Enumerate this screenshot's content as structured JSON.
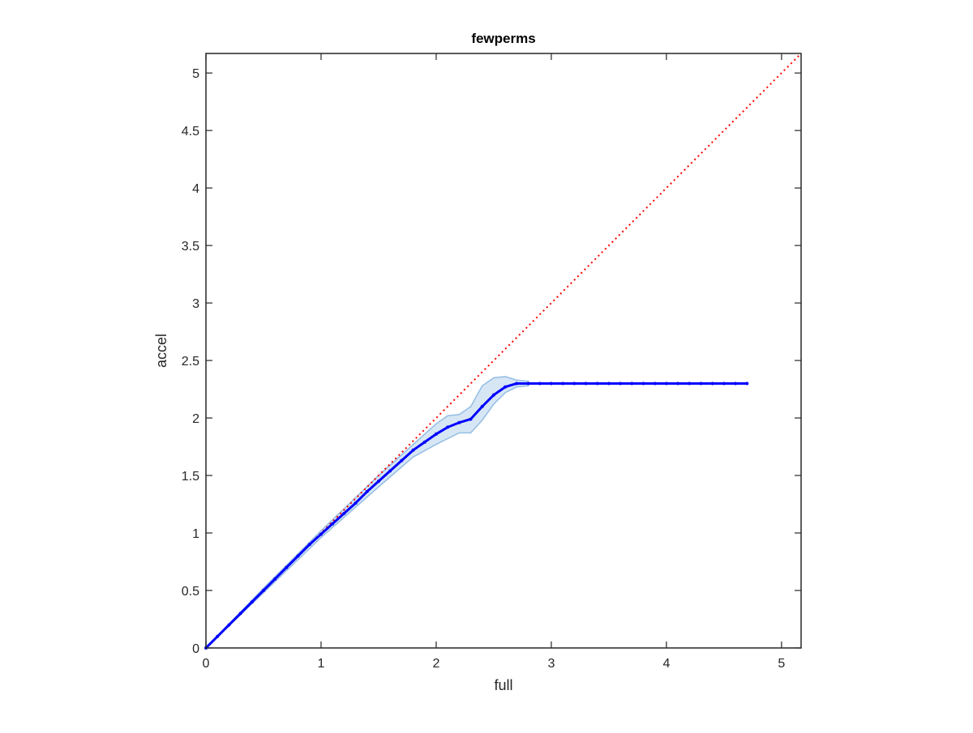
{
  "chart_data": {
    "type": "line",
    "title": "fewperms",
    "x_label": "full",
    "y_label": "accel",
    "xlim": [
      0,
      5.17
    ],
    "ylim": [
      0,
      5.17
    ],
    "xticks": [
      0,
      1,
      2,
      3,
      4,
      5
    ],
    "yticks": [
      0,
      0.5,
      1,
      1.5,
      2,
      2.5,
      3,
      3.5,
      4,
      4.5,
      5
    ],
    "grid": false,
    "box": true,
    "reference": {
      "x": [
        0,
        5.17
      ],
      "values": [
        0,
        5.17
      ],
      "color": "#ff0000",
      "style": "dotted"
    },
    "band": {
      "color": "#5b9bd5",
      "x": [
        0,
        0.5,
        1,
        1.5,
        1.8,
        2.0,
        2.1,
        2.2,
        2.3,
        2.4,
        2.5,
        2.6,
        2.7,
        2.8
      ],
      "upper": [
        0,
        0.52,
        1.02,
        1.5,
        1.77,
        1.95,
        2.02,
        2.03,
        2.1,
        2.28,
        2.35,
        2.36,
        2.33,
        2.32
      ],
      "lower": [
        0,
        0.48,
        0.96,
        1.4,
        1.66,
        1.77,
        1.82,
        1.87,
        1.87,
        1.98,
        2.12,
        2.22,
        2.27,
        2.28
      ]
    },
    "series": [
      {
        "color": "#0000ff",
        "x": [
          0,
          0.1,
          0.2,
          0.3,
          0.4,
          0.5,
          0.6,
          0.7,
          0.8,
          0.9,
          1.0,
          1.1,
          1.2,
          1.3,
          1.4,
          1.5,
          1.6,
          1.7,
          1.8,
          1.9,
          2.0,
          2.1,
          2.2,
          2.3,
          2.4,
          2.5,
          2.6,
          2.7,
          2.8,
          2.9,
          3.0,
          3.1,
          3.2,
          3.3,
          3.4,
          3.5,
          3.6,
          3.7,
          3.8,
          3.9,
          4.0,
          4.1,
          4.2,
          4.3,
          4.4,
          4.5,
          4.6,
          4.7
        ],
        "values": [
          0,
          0.1,
          0.2,
          0.3,
          0.4,
          0.5,
          0.6,
          0.7,
          0.8,
          0.9,
          0.99,
          1.08,
          1.17,
          1.26,
          1.36,
          1.45,
          1.54,
          1.63,
          1.72,
          1.79,
          1.86,
          1.92,
          1.96,
          1.99,
          2.1,
          2.2,
          2.27,
          2.3,
          2.3,
          2.3,
          2.3,
          2.3,
          2.3,
          2.3,
          2.3,
          2.3,
          2.3,
          2.3,
          2.3,
          2.3,
          2.3,
          2.3,
          2.3,
          2.3,
          2.3,
          2.3,
          2.3,
          2.3
        ]
      }
    ]
  }
}
